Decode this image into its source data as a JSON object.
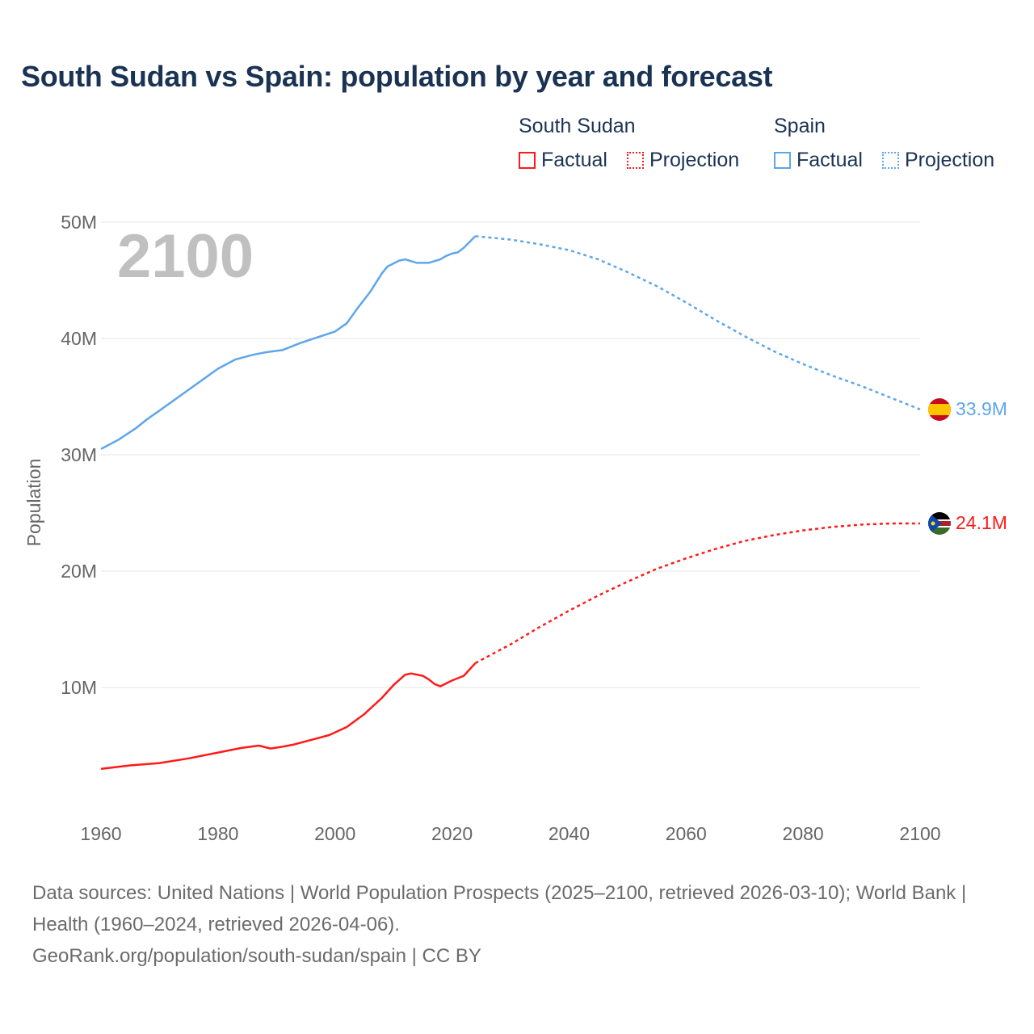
{
  "title": "South Sudan vs Spain: population by year and forecast",
  "legend": {
    "groups": [
      {
        "name": "South Sudan",
        "factual": "Factual",
        "projection": "Projection",
        "color": "#ff1a1a"
      },
      {
        "name": "Spain",
        "factual": "Factual",
        "projection": "Projection",
        "color": "#5ea6ea"
      }
    ]
  },
  "year_label": "2100",
  "chart_data": {
    "type": "line",
    "title": "South Sudan vs Spain: population by year and forecast",
    "xlabel": "",
    "ylabel": "Population",
    "xlim": [
      1960,
      2100
    ],
    "ylim": [
      0,
      50000000
    ],
    "x_ticks": [
      "1960",
      "1980",
      "2000",
      "2020",
      "2040",
      "2060",
      "2080",
      "2100"
    ],
    "y_ticks": [
      {
        "v": 10,
        "label": "10M"
      },
      {
        "v": 20,
        "label": "20M"
      },
      {
        "v": 30,
        "label": "30M"
      },
      {
        "v": 40,
        "label": "40M"
      },
      {
        "v": 50,
        "label": "50M"
      }
    ],
    "y_unit": "millions",
    "grid": true,
    "series": [
      {
        "name": "Spain",
        "color": "#5ea6ea",
        "end_label": "33.9M",
        "factual": [
          [
            1960,
            30.5
          ],
          [
            1963,
            31.3
          ],
          [
            1966,
            32.3
          ],
          [
            1968,
            33.1
          ],
          [
            1970,
            33.8
          ],
          [
            1975,
            35.6
          ],
          [
            1980,
            37.4
          ],
          [
            1983,
            38.2
          ],
          [
            1986,
            38.6
          ],
          [
            1988,
            38.8
          ],
          [
            1991,
            39.0
          ],
          [
            1994,
            39.6
          ],
          [
            1997,
            40.1
          ],
          [
            2000,
            40.6
          ],
          [
            2002,
            41.3
          ],
          [
            2004,
            42.7
          ],
          [
            2006,
            44.0
          ],
          [
            2008,
            45.6
          ],
          [
            2009,
            46.2
          ],
          [
            2011,
            46.7
          ],
          [
            2012,
            46.8
          ],
          [
            2014,
            46.5
          ],
          [
            2016,
            46.5
          ],
          [
            2018,
            46.8
          ],
          [
            2019,
            47.1
          ],
          [
            2020,
            47.3
          ],
          [
            2021,
            47.4
          ],
          [
            2022,
            47.8
          ],
          [
            2024,
            48.8
          ]
        ],
        "projection": [
          [
            2024,
            48.8
          ],
          [
            2030,
            48.5
          ],
          [
            2035,
            48.1
          ],
          [
            2040,
            47.6
          ],
          [
            2045,
            46.8
          ],
          [
            2050,
            45.7
          ],
          [
            2055,
            44.5
          ],
          [
            2060,
            43.1
          ],
          [
            2065,
            41.6
          ],
          [
            2070,
            40.2
          ],
          [
            2075,
            38.9
          ],
          [
            2080,
            37.8
          ],
          [
            2085,
            36.8
          ],
          [
            2090,
            35.9
          ],
          [
            2095,
            34.9
          ],
          [
            2100,
            33.9
          ]
        ]
      },
      {
        "name": "South Sudan",
        "color": "#ff1a1a",
        "end_label": "24.1M",
        "factual": [
          [
            1960,
            3.0
          ],
          [
            1965,
            3.3
          ],
          [
            1970,
            3.5
          ],
          [
            1975,
            3.9
          ],
          [
            1980,
            4.4
          ],
          [
            1984,
            4.8
          ],
          [
            1987,
            5.0
          ],
          [
            1989,
            4.75
          ],
          [
            1991,
            4.9
          ],
          [
            1993,
            5.1
          ],
          [
            1996,
            5.5
          ],
          [
            1999,
            5.9
          ],
          [
            2002,
            6.6
          ],
          [
            2005,
            7.7
          ],
          [
            2008,
            9.1
          ],
          [
            2010,
            10.2
          ],
          [
            2012,
            11.1
          ],
          [
            2013,
            11.2
          ],
          [
            2015,
            11.0
          ],
          [
            2016,
            10.7
          ],
          [
            2017,
            10.3
          ],
          [
            2018,
            10.1
          ],
          [
            2020,
            10.6
          ],
          [
            2022,
            11.0
          ],
          [
            2024,
            12.1
          ]
        ],
        "projection": [
          [
            2024,
            12.1
          ],
          [
            2030,
            13.7
          ],
          [
            2035,
            15.2
          ],
          [
            2040,
            16.6
          ],
          [
            2045,
            17.9
          ],
          [
            2050,
            19.1
          ],
          [
            2055,
            20.2
          ],
          [
            2060,
            21.1
          ],
          [
            2065,
            21.9
          ],
          [
            2070,
            22.6
          ],
          [
            2075,
            23.1
          ],
          [
            2080,
            23.5
          ],
          [
            2085,
            23.8
          ],
          [
            2090,
            24.0
          ],
          [
            2095,
            24.1
          ],
          [
            2100,
            24.1
          ]
        ]
      }
    ]
  },
  "footer": {
    "sources": "Data sources: United Nations | World Population Prospects (2025–2100, retrieved 2026-03-10); World Bank | Health (1960–2024, retrieved 2026-04-06).",
    "credit": "GeoRank.org/population/south-sudan/spain | CC BY"
  }
}
